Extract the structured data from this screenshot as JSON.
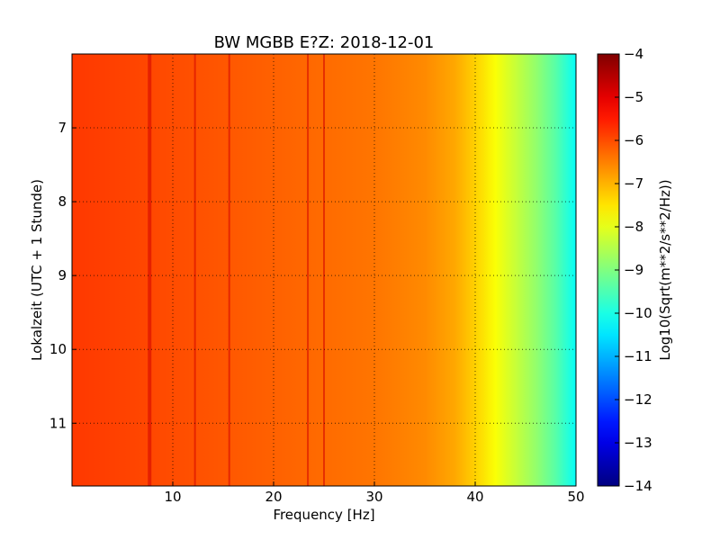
{
  "chart_data": {
    "type": "heatmap",
    "title": "BW MGBB E?Z: 2018-12-01",
    "xlabel": "Frequency [Hz]",
    "ylabel": "Lokalzeit (UTC + 1 Stunde)",
    "colorbar_label": "Log10(Sqrt(m**2/s**2/Hz))",
    "colormap": "jet",
    "xlim": [
      0,
      50
    ],
    "ylim": [
      11.85,
      6.0
    ],
    "x_ticks": [
      10,
      20,
      30,
      40,
      50
    ],
    "y_ticks": [
      7,
      8,
      9,
      10,
      11
    ],
    "colorbar_range": [
      -14,
      -4
    ],
    "colorbar_ticks": [
      -4,
      -5,
      -6,
      -7,
      -8,
      -9,
      -10,
      -11,
      -12,
      -13,
      -14
    ],
    "grid": true,
    "grid_style": "dotted",
    "spectrum_profile": [
      {
        "freq": 0,
        "value": -5.8
      },
      {
        "freq": 10,
        "value": -6.0
      },
      {
        "freq": 20,
        "value": -6.2
      },
      {
        "freq": 30,
        "value": -6.4
      },
      {
        "freq": 35,
        "value": -6.6
      },
      {
        "freq": 38,
        "value": -6.9
      },
      {
        "freq": 40,
        "value": -7.3
      },
      {
        "freq": 42,
        "value": -7.8
      },
      {
        "freq": 44,
        "value": -8.3
      },
      {
        "freq": 46,
        "value": -8.8
      },
      {
        "freq": 48,
        "value": -9.4
      },
      {
        "freq": 50,
        "value": -10.2
      }
    ],
    "spectral_lines_hz": [
      7.7,
      12.2,
      15.6,
      23.4,
      25.0
    ]
  }
}
